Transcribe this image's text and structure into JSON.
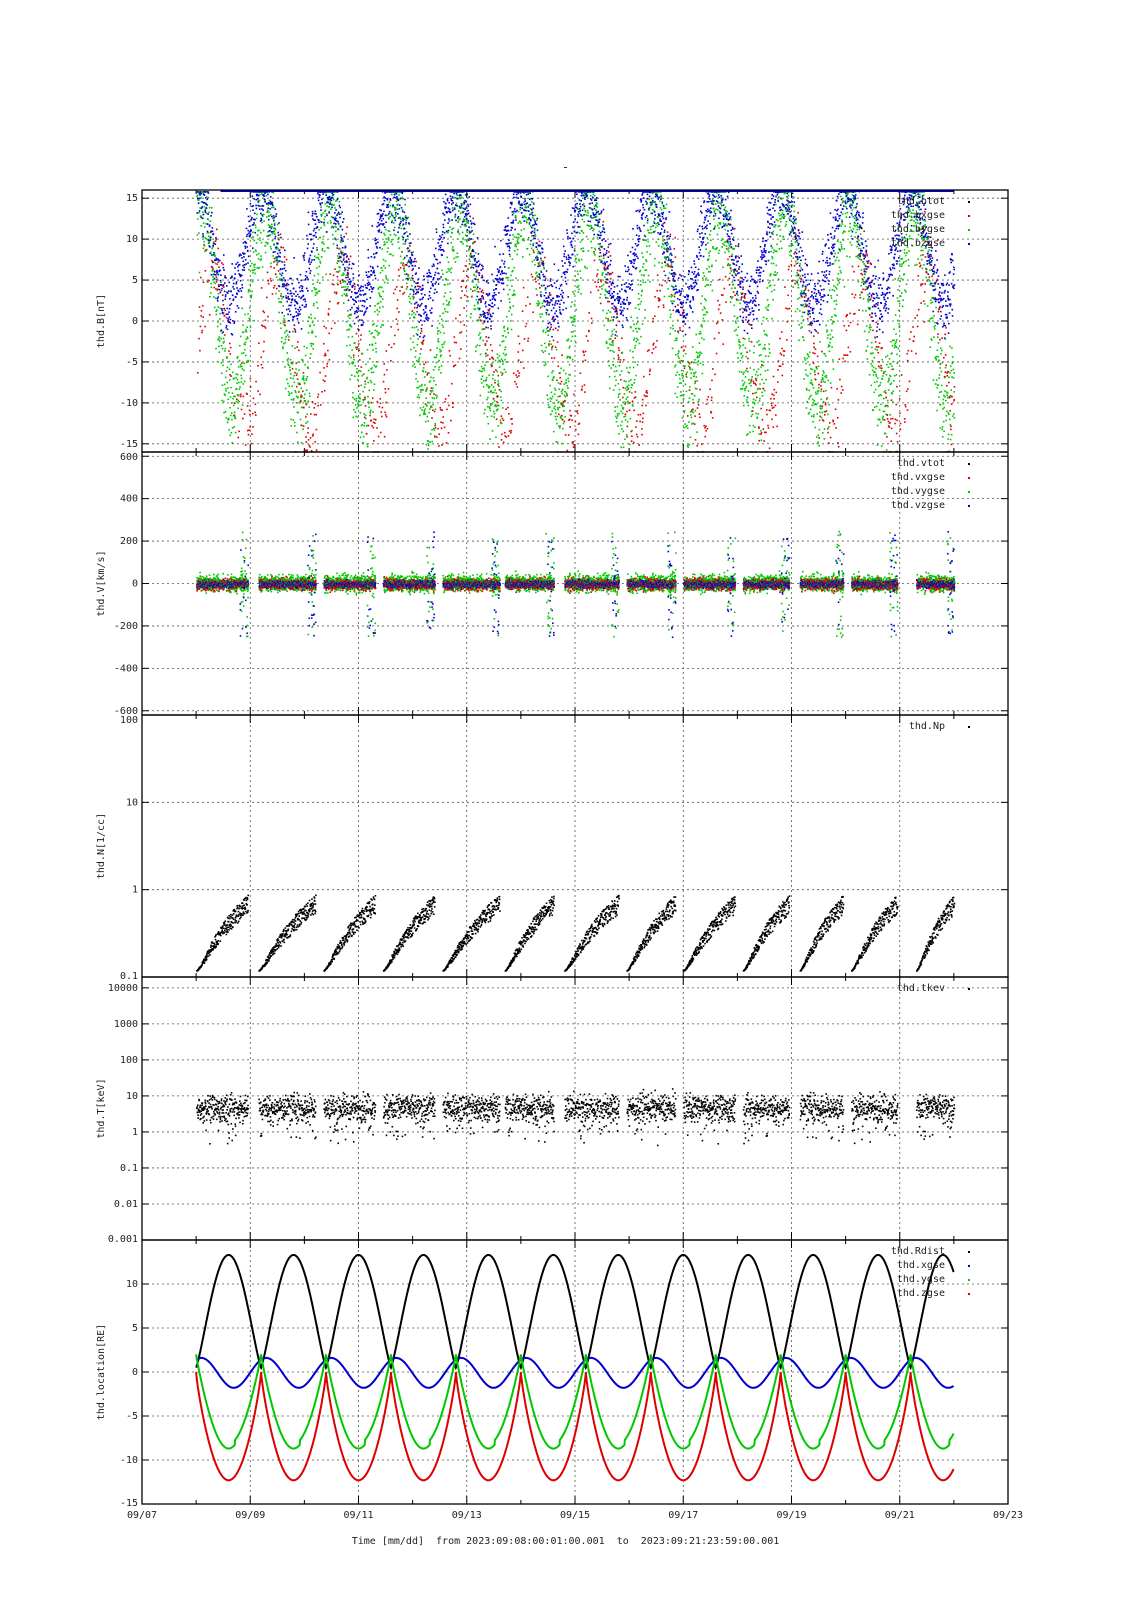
{
  "page": {
    "title": "-",
    "x_caption": {
      "label": "Time [mm/dd]",
      "from_word": "from",
      "from": "2023:09:08:00:01:00.001",
      "to_word": "to",
      "to": "2023:09:21:23:59:00.001"
    }
  },
  "chart_data": [
    {
      "type": "scatter",
      "ylabel": "thd.B[nT]",
      "ylim": [
        -16,
        16
      ],
      "yticks": [
        -15,
        -10,
        -5,
        0,
        5,
        10,
        15
      ],
      "ytick_labels": [
        "-15",
        "-10",
        "-5",
        "0",
        "5",
        "10",
        "15"
      ],
      "grid": true,
      "legend_position": "top-right",
      "series": [
        {
          "name": "thd.btot",
          "color": "#000000"
        },
        {
          "name": "thd.bxgse",
          "color": "#dd0000"
        },
        {
          "name": "thd.bygse",
          "color": "#00c800"
        },
        {
          "name": "thd.bzgse",
          "color": "#0000cc"
        }
      ]
    },
    {
      "type": "scatter",
      "ylabel": "thd.V[km/s]",
      "ylim": [
        -620,
        620
      ],
      "yticks": [
        -600,
        -400,
        -200,
        0,
        200,
        400,
        600
      ],
      "ytick_labels": [
        "-600",
        "-400",
        "-200",
        "0",
        "200",
        "400",
        "600"
      ],
      "grid": true,
      "legend_position": "top-right",
      "series": [
        {
          "name": "thd.vtot",
          "color": "#000000"
        },
        {
          "name": "thd.vxgse",
          "color": "#dd0000"
        },
        {
          "name": "thd.vygse",
          "color": "#00c800"
        },
        {
          "name": "thd.vzgse",
          "color": "#0000cc"
        }
      ]
    },
    {
      "type": "scatter",
      "ylabel": "thd.N[1/cc]",
      "yscale": "log",
      "ylim": [
        0.1,
        100
      ],
      "yticks": [
        0.1,
        1,
        10,
        100
      ],
      "ytick_labels": [
        "0.1",
        "1",
        "10",
        "100"
      ],
      "grid": true,
      "legend_position": "top-right",
      "series": [
        {
          "name": "thd.Np",
          "color": "#000000"
        }
      ]
    },
    {
      "type": "scatter",
      "ylabel": "thd.T[keV]",
      "yscale": "log",
      "ylim": [
        0.001,
        20000
      ],
      "yticks": [
        0.001,
        0.01,
        0.1,
        1,
        10,
        100,
        1000,
        10000
      ],
      "ytick_labels": [
        "0.001",
        "0.01",
        "0.1",
        "1",
        "10",
        "100",
        "1000",
        "10000"
      ],
      "grid": true,
      "legend_position": "top-right",
      "series": [
        {
          "name": "thd.tkev",
          "color": "#000000"
        }
      ]
    },
    {
      "type": "line",
      "ylabel": "thd.location[RE]",
      "ylim": [
        -15,
        15
      ],
      "yticks": [
        -15,
        -10,
        -5,
        0,
        5,
        10
      ],
      "ytick_labels": [
        "-15",
        "-10",
        "-5",
        "0",
        "5",
        "10"
      ],
      "grid": true,
      "legend_position": "top-right",
      "xlim": [
        "09/07",
        "09/23"
      ],
      "xtick_labels": [
        "09/07",
        "09/09",
        "09/11",
        "09/13",
        "09/15",
        "09/17",
        "09/19",
        "09/21",
        "09/23"
      ],
      "series": [
        {
          "name": "thd.Rdist",
          "color": "#000000",
          "min": 0.5,
          "max": 13.3
        },
        {
          "name": "thd.xgse",
          "color": "#0000cc",
          "min": -1.8,
          "max": 1.6
        },
        {
          "name": "thd.ygse",
          "color": "#00c800",
          "min": -8.7,
          "max": 2.0
        },
        {
          "name": "thd.zgse",
          "color": "#dd0000",
          "min": -12.3,
          "max": 0
        }
      ],
      "orbit_period_days": 1.2,
      "data_start": "09/08",
      "data_end": "09/22"
    }
  ]
}
